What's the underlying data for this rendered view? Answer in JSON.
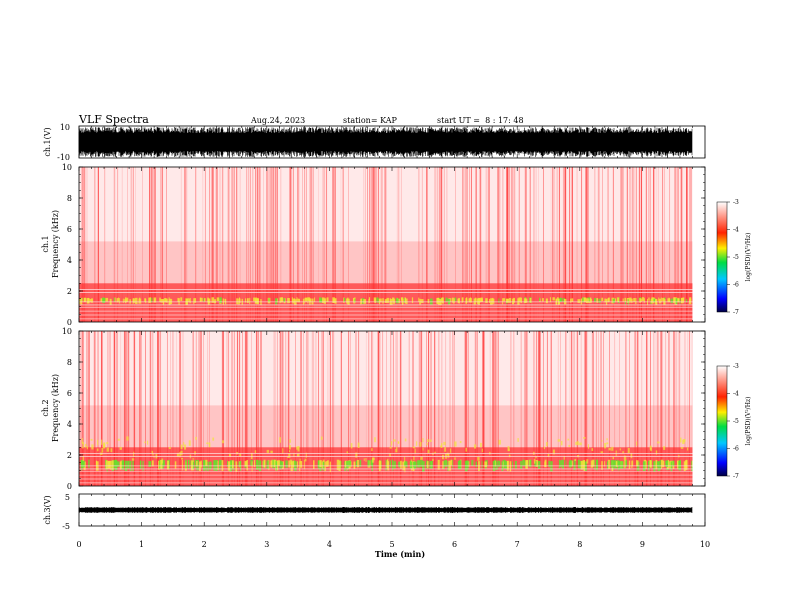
{
  "header": {
    "title": "VLF Spectra",
    "date": "Aug.24, 2023",
    "station": "station= KAP",
    "start": "start UT =  8 : 17: 48"
  },
  "chart_data": [
    {
      "type": "line",
      "panel": "ch1-waveform",
      "ylabel": "ch.1(V)",
      "ylim": [
        -10,
        10
      ],
      "yticks": [
        "10",
        "-10"
      ],
      "xlim": [
        0,
        10
      ],
      "description_free": true
    },
    {
      "type": "heatmap",
      "panel": "ch1-spectrogram",
      "ylabel_line1": "ch.1",
      "ylabel_line2": "Frequency (kHz)",
      "ylim": [
        0,
        10
      ],
      "yticks": [
        "0",
        "2",
        "4",
        "6",
        "8",
        "10"
      ],
      "xlim": [
        0,
        10
      ],
      "data_end_min": 9.8,
      "colorbar": {
        "label": "log(PSD)(V²/Hz)",
        "range": [
          -7,
          -3
        ],
        "ticks": [
          "-7",
          "-6",
          "-5",
          "-4",
          "-3"
        ]
      }
    },
    {
      "type": "heatmap",
      "panel": "ch2-spectrogram",
      "ylabel_line1": "ch.2",
      "ylabel_line2": "Frequency (kHz)",
      "ylim": [
        0,
        10
      ],
      "yticks": [
        "0",
        "2",
        "4",
        "6",
        "8",
        "10"
      ],
      "xlim": [
        0,
        10
      ],
      "data_end_min": 9.8,
      "colorbar": {
        "label": "log(PSD)(V²/Hz)",
        "range": [
          -7,
          -3
        ],
        "ticks": [
          "-7",
          "-6",
          "-5",
          "-4",
          "-3"
        ]
      }
    },
    {
      "type": "line",
      "panel": "ch3-waveform",
      "ylabel": "ch.3(V)",
      "ylim": [
        -5,
        5
      ],
      "yticks": [
        "5",
        "-5"
      ],
      "xlim": [
        0,
        10
      ],
      "xlabel": "Time (min)",
      "xticks": [
        "0",
        "1",
        "2",
        "3",
        "4",
        "5",
        "6",
        "7",
        "8",
        "9",
        "10"
      ]
    }
  ],
  "colors": {
    "spectro_bg": "#ffffff",
    "red": "#ff2a2a",
    "yellow": "#f2e43a",
    "green": "#66e02e",
    "trace": "#000000"
  }
}
